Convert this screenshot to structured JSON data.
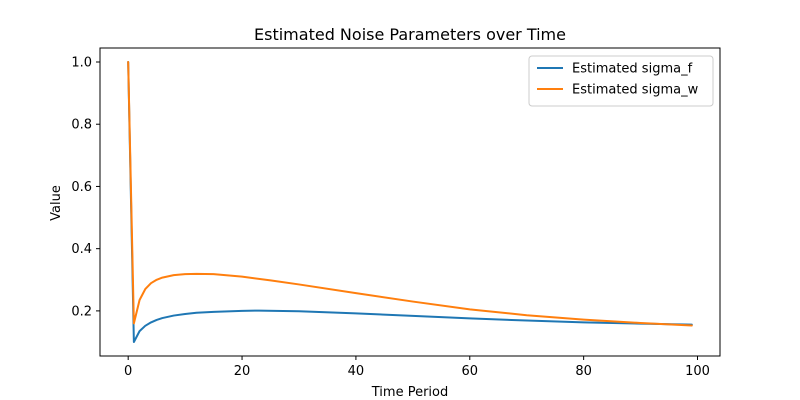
{
  "chart_data": {
    "type": "line",
    "title": "Estimated Noise Parameters over Time",
    "xlabel": "Time Period",
    "ylabel": "Value",
    "xlim": [
      -4.95,
      103.95
    ],
    "ylim": [
      0.055,
      1.045
    ],
    "xticks": [
      0,
      20,
      40,
      60,
      80,
      100
    ],
    "yticks": [
      0.2,
      0.4,
      0.6,
      0.8,
      1.0
    ],
    "xtick_labels": [
      "0",
      "20",
      "40",
      "60",
      "80",
      "100"
    ],
    "ytick_labels": [
      "0.2",
      "0.4",
      "0.6",
      "0.8",
      "1.0"
    ],
    "grid": false,
    "legend_position": "upper right",
    "series": [
      {
        "name": "Estimated sigma_f",
        "color": "#1f77b4",
        "x": [
          0,
          1,
          2,
          3,
          4,
          5,
          6,
          8,
          10,
          12,
          15,
          20,
          23,
          30,
          40,
          50,
          60,
          70,
          80,
          90,
          99
        ],
        "y": [
          1.0,
          0.1,
          0.135,
          0.152,
          0.163,
          0.171,
          0.177,
          0.185,
          0.19,
          0.194,
          0.197,
          0.2,
          0.201,
          0.199,
          0.192,
          0.184,
          0.176,
          0.169,
          0.163,
          0.159,
          0.156
        ]
      },
      {
        "name": "Estimated sigma_w",
        "color": "#ff7f0e",
        "x": [
          0,
          1,
          2,
          3,
          4,
          5,
          6,
          8,
          10,
          12,
          15,
          20,
          25,
          30,
          40,
          50,
          60,
          70,
          80,
          90,
          99
        ],
        "y": [
          1.0,
          0.16,
          0.235,
          0.27,
          0.289,
          0.3,
          0.307,
          0.315,
          0.318,
          0.319,
          0.318,
          0.31,
          0.298,
          0.285,
          0.257,
          0.23,
          0.205,
          0.186,
          0.172,
          0.161,
          0.153
        ]
      }
    ]
  }
}
